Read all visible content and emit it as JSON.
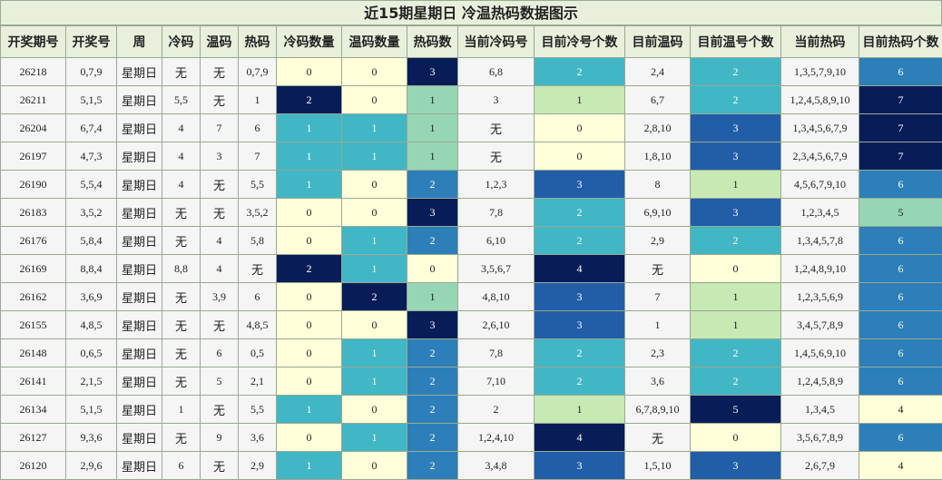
{
  "title": "近15期星期日 冷温热码数据图示",
  "columns": [
    "开奖期号",
    "开奖号",
    "周",
    "冷码",
    "温码",
    "热码",
    "冷码数量",
    "温码数量",
    "热码数",
    "当前冷码号",
    "目前冷号个数",
    "目前温码",
    "目前温号个数",
    "当前热码",
    "目前热码个数"
  ],
  "rows": [
    [
      "26218",
      "0,7,9",
      "星期日",
      "无",
      "无",
      "0,7,9",
      "0",
      "0",
      "3",
      "6,8",
      "2",
      "2,4",
      "2",
      "1,3,5,7,9,10",
      "6"
    ],
    [
      "26211",
      "5,1,5",
      "星期日",
      "5,5",
      "无",
      "1",
      "2",
      "0",
      "1",
      "3",
      "1",
      "6,7",
      "2",
      "1,2,4,5,8,9,10",
      "7"
    ],
    [
      "26204",
      "6,7,4",
      "星期日",
      "4",
      "7",
      "6",
      "1",
      "1",
      "1",
      "无",
      "0",
      "2,8,10",
      "3",
      "1,3,4,5,6,7,9",
      "7"
    ],
    [
      "26197",
      "4,7,3",
      "星期日",
      "4",
      "3",
      "7",
      "1",
      "1",
      "1",
      "无",
      "0",
      "1,8,10",
      "3",
      "2,3,4,5,6,7,9",
      "7"
    ],
    [
      "26190",
      "5,5,4",
      "星期日",
      "4",
      "无",
      "5,5",
      "1",
      "0",
      "2",
      "1,2,3",
      "3",
      "8",
      "1",
      "4,5,6,7,9,10",
      "6"
    ],
    [
      "26183",
      "3,5,2",
      "星期日",
      "无",
      "无",
      "3,5,2",
      "0",
      "0",
      "3",
      "7,8",
      "2",
      "6,9,10",
      "3",
      "1,2,3,4,5",
      "5"
    ],
    [
      "26176",
      "5,8,4",
      "星期日",
      "无",
      "4",
      "5,8",
      "0",
      "1",
      "2",
      "6,10",
      "2",
      "2,9",
      "2",
      "1,3,4,5,7,8",
      "6"
    ],
    [
      "26169",
      "8,8,4",
      "星期日",
      "8,8",
      "4",
      "无",
      "2",
      "1",
      "0",
      "3,5,6,7",
      "4",
      "无",
      "0",
      "1,2,4,8,9,10",
      "6"
    ],
    [
      "26162",
      "3,6,9",
      "星期日",
      "无",
      "3,9",
      "6",
      "0",
      "2",
      "1",
      "4,8,10",
      "3",
      "7",
      "1",
      "1,2,3,5,6,9",
      "6"
    ],
    [
      "26155",
      "4,8,5",
      "星期日",
      "无",
      "无",
      "4,8,5",
      "0",
      "0",
      "3",
      "2,6,10",
      "3",
      "1",
      "1",
      "3,4,5,7,8,9",
      "6"
    ],
    [
      "26148",
      "0,6,5",
      "星期日",
      "无",
      "6",
      "0,5",
      "0",
      "1",
      "2",
      "7,8",
      "2",
      "2,3",
      "2",
      "1,4,5,6,9,10",
      "6"
    ],
    [
      "26141",
      "2,1,5",
      "星期日",
      "无",
      "5",
      "2,1",
      "0",
      "1",
      "2",
      "7,10",
      "2",
      "3,6",
      "2",
      "1,2,4,5,8,9",
      "6"
    ],
    [
      "26134",
      "5,1,5",
      "星期日",
      "1",
      "无",
      "5,5",
      "1",
      "0",
      "2",
      "2",
      "1",
      "6,7,8,9,10",
      "5",
      "1,3,4,5",
      "4"
    ],
    [
      "26127",
      "9,3,6",
      "星期日",
      "无",
      "9",
      "3,6",
      "0",
      "1",
      "2",
      "1,2,4,10",
      "4",
      "无",
      "0",
      "3,5,6,7,8,9",
      "6"
    ],
    [
      "26120",
      "2,9,6",
      "星期日",
      "6",
      "无",
      "2,9",
      "1",
      "0",
      "2",
      "3,4,8",
      "3",
      "1,5,10",
      "3",
      "2,6,7,9",
      "4"
    ]
  ]
}
